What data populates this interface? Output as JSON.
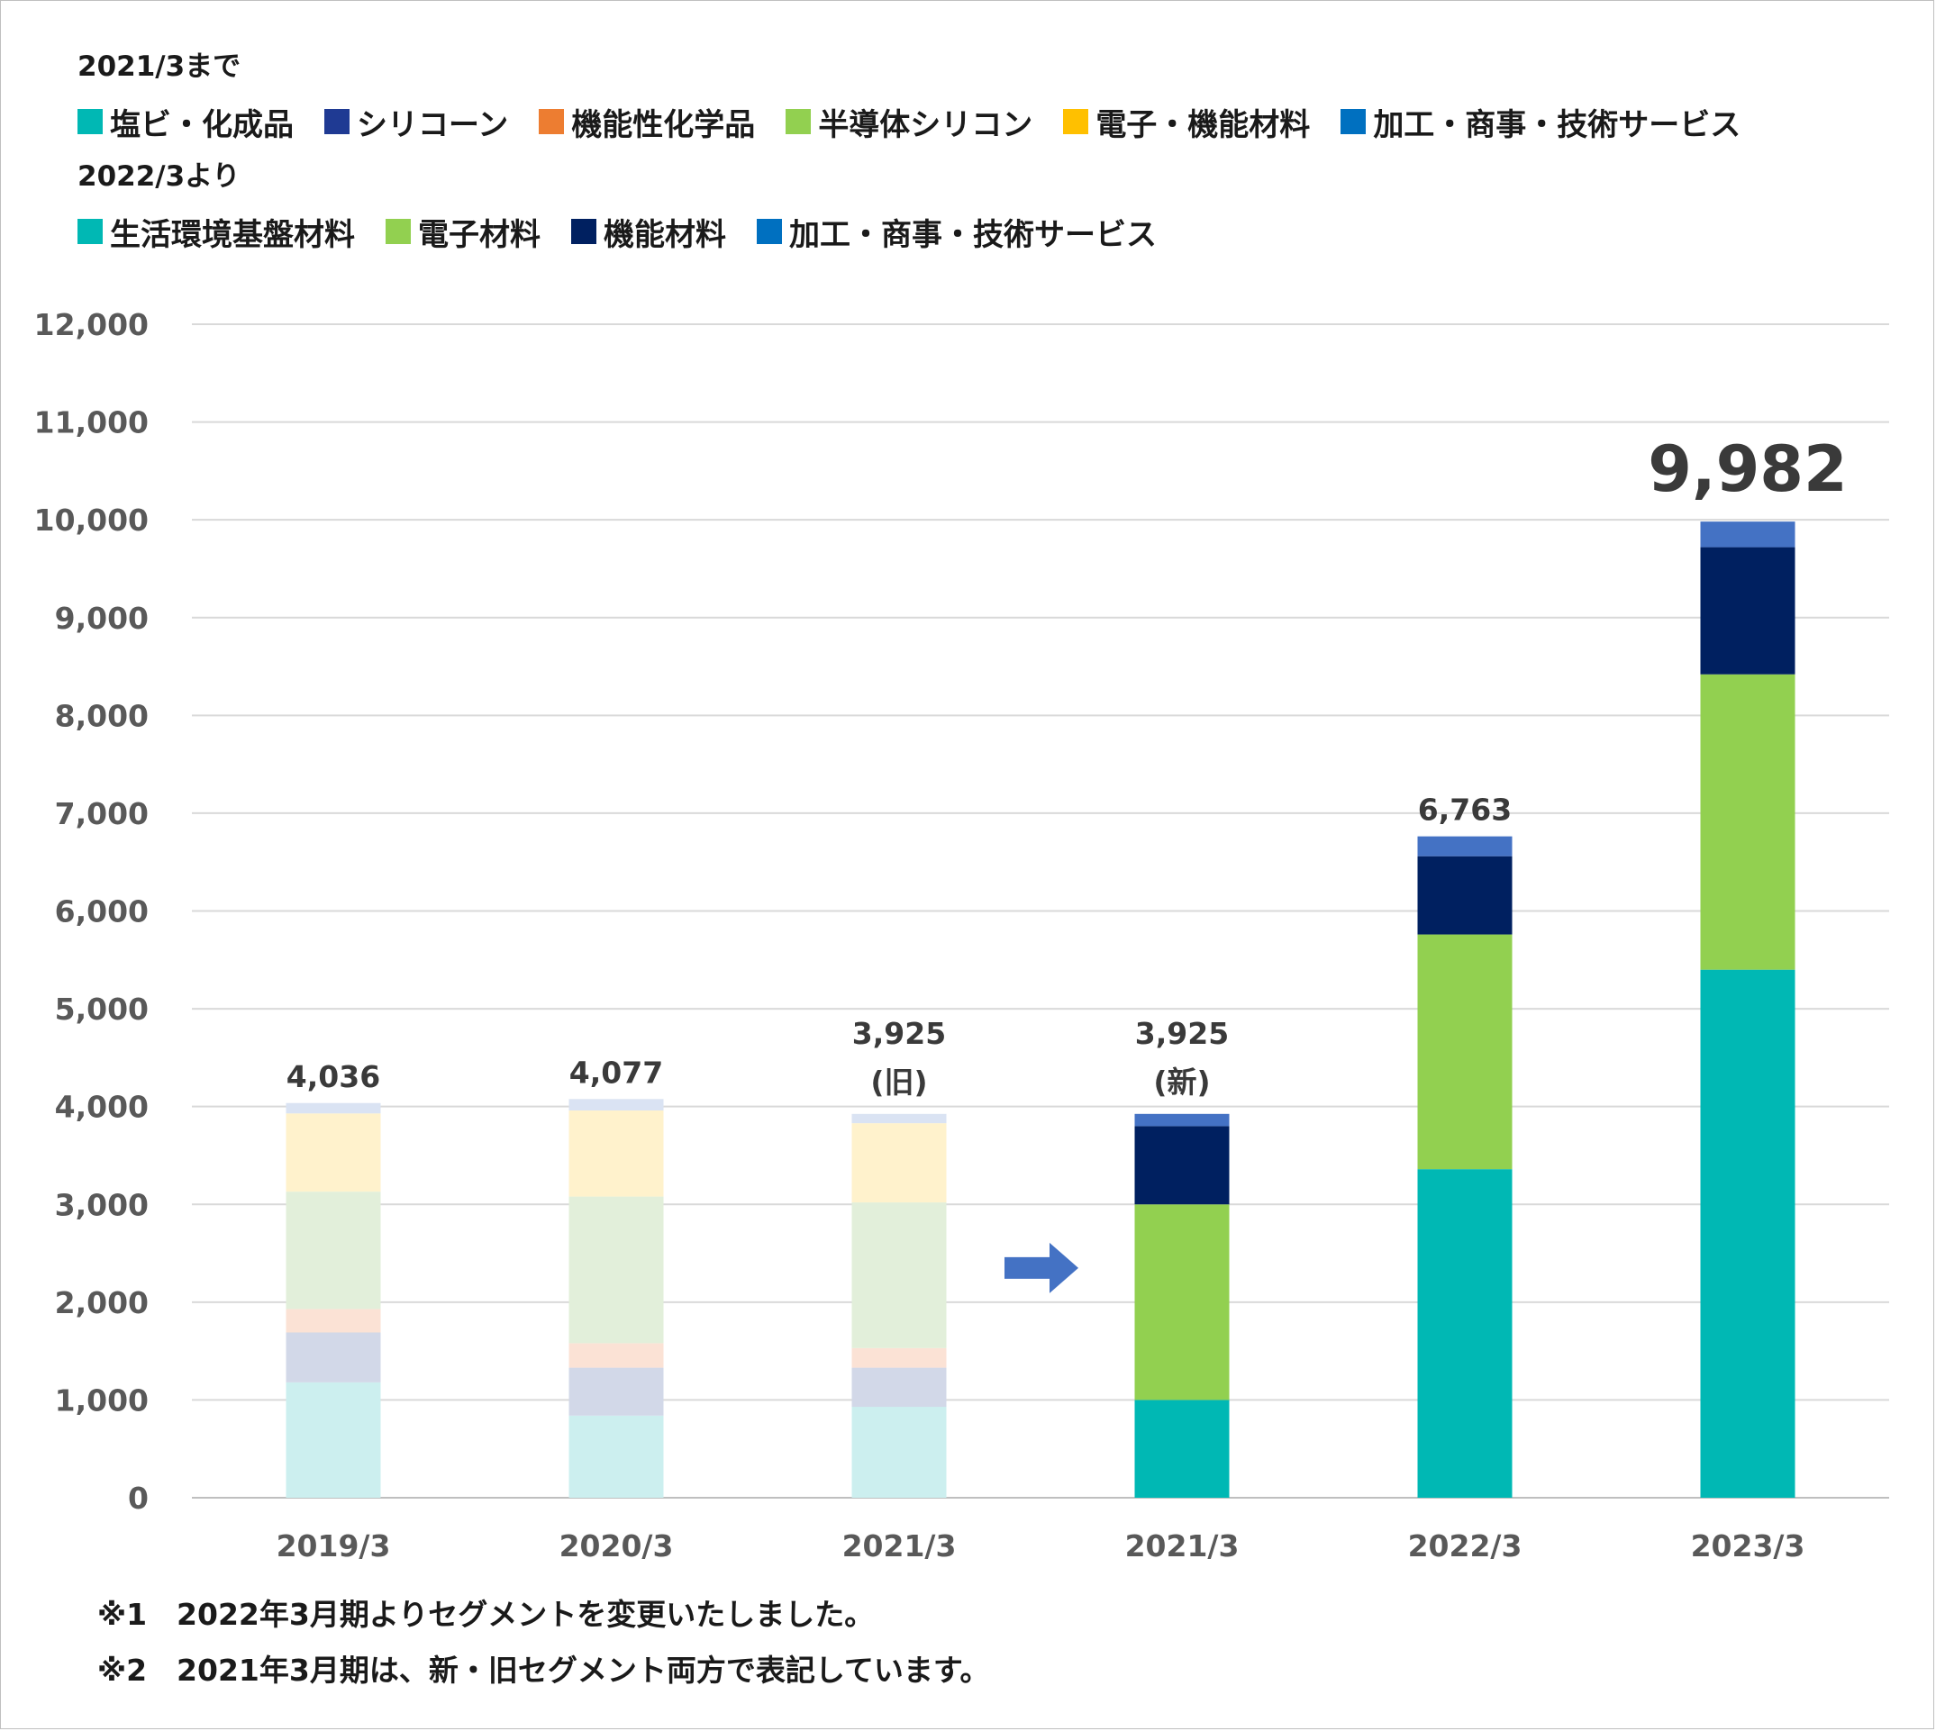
{
  "legend": {
    "old_heading": "2021/3まで",
    "old_items": [
      {
        "label": "塩ビ・化成品",
        "color": "#00b8b4"
      },
      {
        "label": "シリコーン",
        "color": "#1f3a93"
      },
      {
        "label": "機能性化学品",
        "color": "#ed7d31"
      },
      {
        "label": "半導体シリコン",
        "color": "#92d050"
      },
      {
        "label": "電子・機能材料",
        "color": "#ffc000"
      },
      {
        "label": "加工・商事・技術サービス",
        "color": "#0070c0"
      }
    ],
    "new_heading": "2022/3より",
    "new_items": [
      {
        "label": "生活環境基盤材料",
        "color": "#00b8b4"
      },
      {
        "label": "電子材料",
        "color": "#92d050"
      },
      {
        "label": "機能材料",
        "color": "#002060"
      },
      {
        "label": "加工・商事・技術サービス",
        "color": "#0070c0"
      }
    ]
  },
  "chart_data": {
    "type": "bar",
    "stacked": true,
    "ylim": [
      0,
      12000
    ],
    "yticks": [
      0,
      1000,
      2000,
      3000,
      4000,
      5000,
      6000,
      7000,
      8000,
      9000,
      10000,
      11000,
      12000
    ],
    "ytick_labels": [
      "0",
      "1,000",
      "2,000",
      "3,000",
      "4,000",
      "5,000",
      "6,000",
      "7,000",
      "8,000",
      "9,000",
      "10,000",
      "11,000",
      "12,000"
    ],
    "grid": true,
    "categories": [
      "2019/3",
      "2020/3",
      "2021/3",
      "2021/3",
      "2022/3",
      "2023/3"
    ],
    "segments": [
      {
        "name": "塩ビ・化成品",
        "color": "#ccefef",
        "values": [
          1180,
          840,
          930,
          null,
          null,
          null
        ]
      },
      {
        "name": "シリコーン",
        "color": "#d2d8e8",
        "values": [
          510,
          490,
          400,
          null,
          null,
          null
        ]
      },
      {
        "name": "機能性化学品",
        "color": "#fbe2d5",
        "values": [
          240,
          250,
          200,
          null,
          null,
          null
        ]
      },
      {
        "name": "半導体シリコン",
        "color": "#e2efda",
        "values": [
          1200,
          1500,
          1490,
          null,
          null,
          null
        ]
      },
      {
        "name": "電子・機能材料",
        "color": "#fff2cc",
        "values": [
          800,
          880,
          810,
          null,
          null,
          null
        ]
      },
      {
        "name": "加工・商事・技術サービス",
        "color": "#dae3f3",
        "values": [
          106,
          117,
          95,
          null,
          null,
          null
        ]
      },
      {
        "name": "生活環境基盤材料",
        "color": "#00b8b4",
        "values": [
          null,
          null,
          null,
          1000,
          3360,
          5400
        ]
      },
      {
        "name": "電子材料",
        "color": "#92d050",
        "values": [
          null,
          null,
          null,
          2000,
          2400,
          3020
        ]
      },
      {
        "name": "機能材料",
        "color": "#002060",
        "values": [
          null,
          null,
          null,
          800,
          800,
          1300
        ]
      },
      {
        "name": "加工・商事・技術サービス",
        "color": "#4472c4",
        "values": [
          null,
          null,
          null,
          125,
          203,
          262
        ]
      }
    ],
    "totals": [
      4036,
      4077,
      3925,
      3925,
      6763,
      9982
    ],
    "total_labels": [
      "4,036",
      "4,077",
      "3,925",
      "3,925",
      "6,763",
      "9,982"
    ],
    "total_sublabels": [
      "",
      "",
      "(旧)",
      "(新)",
      "",
      ""
    ],
    "highlight_index": 5,
    "arrow_color": "#4472c4"
  },
  "notes": [
    "※1　2022年3月期よりセグメントを変更いたしました。",
    "※2　2021年3月期は、新・旧セグメント両方で表記しています。"
  ]
}
